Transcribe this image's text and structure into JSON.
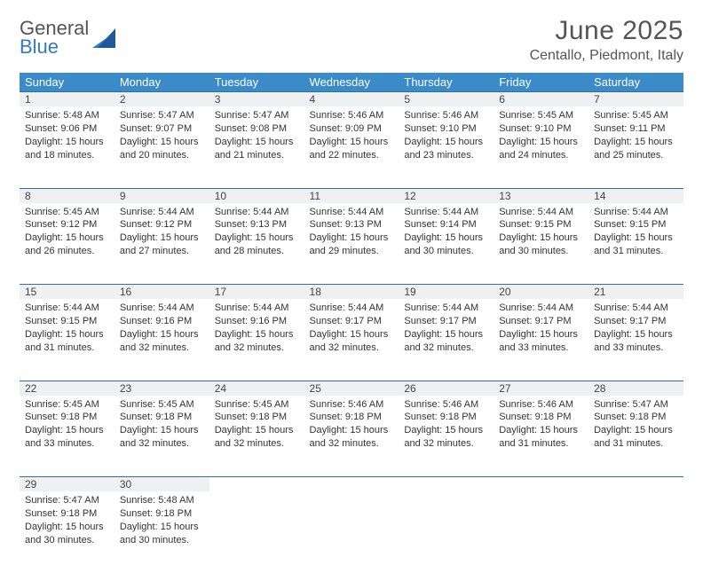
{
  "logo": {
    "word1": "General",
    "word2": "Blue",
    "sail_color": "#2f7bc4"
  },
  "title": "June 2025",
  "location": "Centallo, Piedmont, Italy",
  "colors": {
    "header_bg": "#3b8bc9",
    "header_text": "#ffffff",
    "daynum_bg": "#eef0f2",
    "row_border": "#2f6fa5",
    "body_text": "#333333",
    "title_text": "#555555"
  },
  "day_headers": [
    "Sunday",
    "Monday",
    "Tuesday",
    "Wednesday",
    "Thursday",
    "Friday",
    "Saturday"
  ],
  "weeks": [
    {
      "nums": [
        "1",
        "2",
        "3",
        "4",
        "5",
        "6",
        "7"
      ],
      "cells": [
        {
          "sunrise": "Sunrise: 5:48 AM",
          "sunset": "Sunset: 9:06 PM",
          "day1": "Daylight: 15 hours",
          "day2": "and 18 minutes."
        },
        {
          "sunrise": "Sunrise: 5:47 AM",
          "sunset": "Sunset: 9:07 PM",
          "day1": "Daylight: 15 hours",
          "day2": "and 20 minutes."
        },
        {
          "sunrise": "Sunrise: 5:47 AM",
          "sunset": "Sunset: 9:08 PM",
          "day1": "Daylight: 15 hours",
          "day2": "and 21 minutes."
        },
        {
          "sunrise": "Sunrise: 5:46 AM",
          "sunset": "Sunset: 9:09 PM",
          "day1": "Daylight: 15 hours",
          "day2": "and 22 minutes."
        },
        {
          "sunrise": "Sunrise: 5:46 AM",
          "sunset": "Sunset: 9:10 PM",
          "day1": "Daylight: 15 hours",
          "day2": "and 23 minutes."
        },
        {
          "sunrise": "Sunrise: 5:45 AM",
          "sunset": "Sunset: 9:10 PM",
          "day1": "Daylight: 15 hours",
          "day2": "and 24 minutes."
        },
        {
          "sunrise": "Sunrise: 5:45 AM",
          "sunset": "Sunset: 9:11 PM",
          "day1": "Daylight: 15 hours",
          "day2": "and 25 minutes."
        }
      ]
    },
    {
      "nums": [
        "8",
        "9",
        "10",
        "11",
        "12",
        "13",
        "14"
      ],
      "cells": [
        {
          "sunrise": "Sunrise: 5:45 AM",
          "sunset": "Sunset: 9:12 PM",
          "day1": "Daylight: 15 hours",
          "day2": "and 26 minutes."
        },
        {
          "sunrise": "Sunrise: 5:44 AM",
          "sunset": "Sunset: 9:12 PM",
          "day1": "Daylight: 15 hours",
          "day2": "and 27 minutes."
        },
        {
          "sunrise": "Sunrise: 5:44 AM",
          "sunset": "Sunset: 9:13 PM",
          "day1": "Daylight: 15 hours",
          "day2": "and 28 minutes."
        },
        {
          "sunrise": "Sunrise: 5:44 AM",
          "sunset": "Sunset: 9:13 PM",
          "day1": "Daylight: 15 hours",
          "day2": "and 29 minutes."
        },
        {
          "sunrise": "Sunrise: 5:44 AM",
          "sunset": "Sunset: 9:14 PM",
          "day1": "Daylight: 15 hours",
          "day2": "and 30 minutes."
        },
        {
          "sunrise": "Sunrise: 5:44 AM",
          "sunset": "Sunset: 9:15 PM",
          "day1": "Daylight: 15 hours",
          "day2": "and 30 minutes."
        },
        {
          "sunrise": "Sunrise: 5:44 AM",
          "sunset": "Sunset: 9:15 PM",
          "day1": "Daylight: 15 hours",
          "day2": "and 31 minutes."
        }
      ]
    },
    {
      "nums": [
        "15",
        "16",
        "17",
        "18",
        "19",
        "20",
        "21"
      ],
      "cells": [
        {
          "sunrise": "Sunrise: 5:44 AM",
          "sunset": "Sunset: 9:15 PM",
          "day1": "Daylight: 15 hours",
          "day2": "and 31 minutes."
        },
        {
          "sunrise": "Sunrise: 5:44 AM",
          "sunset": "Sunset: 9:16 PM",
          "day1": "Daylight: 15 hours",
          "day2": "and 32 minutes."
        },
        {
          "sunrise": "Sunrise: 5:44 AM",
          "sunset": "Sunset: 9:16 PM",
          "day1": "Daylight: 15 hours",
          "day2": "and 32 minutes."
        },
        {
          "sunrise": "Sunrise: 5:44 AM",
          "sunset": "Sunset: 9:17 PM",
          "day1": "Daylight: 15 hours",
          "day2": "and 32 minutes."
        },
        {
          "sunrise": "Sunrise: 5:44 AM",
          "sunset": "Sunset: 9:17 PM",
          "day1": "Daylight: 15 hours",
          "day2": "and 32 minutes."
        },
        {
          "sunrise": "Sunrise: 5:44 AM",
          "sunset": "Sunset: 9:17 PM",
          "day1": "Daylight: 15 hours",
          "day2": "and 33 minutes."
        },
        {
          "sunrise": "Sunrise: 5:44 AM",
          "sunset": "Sunset: 9:17 PM",
          "day1": "Daylight: 15 hours",
          "day2": "and 33 minutes."
        }
      ]
    },
    {
      "nums": [
        "22",
        "23",
        "24",
        "25",
        "26",
        "27",
        "28"
      ],
      "cells": [
        {
          "sunrise": "Sunrise: 5:45 AM",
          "sunset": "Sunset: 9:18 PM",
          "day1": "Daylight: 15 hours",
          "day2": "and 33 minutes."
        },
        {
          "sunrise": "Sunrise: 5:45 AM",
          "sunset": "Sunset: 9:18 PM",
          "day1": "Daylight: 15 hours",
          "day2": "and 32 minutes."
        },
        {
          "sunrise": "Sunrise: 5:45 AM",
          "sunset": "Sunset: 9:18 PM",
          "day1": "Daylight: 15 hours",
          "day2": "and 32 minutes."
        },
        {
          "sunrise": "Sunrise: 5:46 AM",
          "sunset": "Sunset: 9:18 PM",
          "day1": "Daylight: 15 hours",
          "day2": "and 32 minutes."
        },
        {
          "sunrise": "Sunrise: 5:46 AM",
          "sunset": "Sunset: 9:18 PM",
          "day1": "Daylight: 15 hours",
          "day2": "and 32 minutes."
        },
        {
          "sunrise": "Sunrise: 5:46 AM",
          "sunset": "Sunset: 9:18 PM",
          "day1": "Daylight: 15 hours",
          "day2": "and 31 minutes."
        },
        {
          "sunrise": "Sunrise: 5:47 AM",
          "sunset": "Sunset: 9:18 PM",
          "day1": "Daylight: 15 hours",
          "day2": "and 31 minutes."
        }
      ]
    },
    {
      "nums": [
        "29",
        "30",
        "",
        "",
        "",
        "",
        ""
      ],
      "cells": [
        {
          "sunrise": "Sunrise: 5:47 AM",
          "sunset": "Sunset: 9:18 PM",
          "day1": "Daylight: 15 hours",
          "day2": "and 30 minutes."
        },
        {
          "sunrise": "Sunrise: 5:48 AM",
          "sunset": "Sunset: 9:18 PM",
          "day1": "Daylight: 15 hours",
          "day2": "and 30 minutes."
        },
        null,
        null,
        null,
        null,
        null
      ]
    }
  ]
}
